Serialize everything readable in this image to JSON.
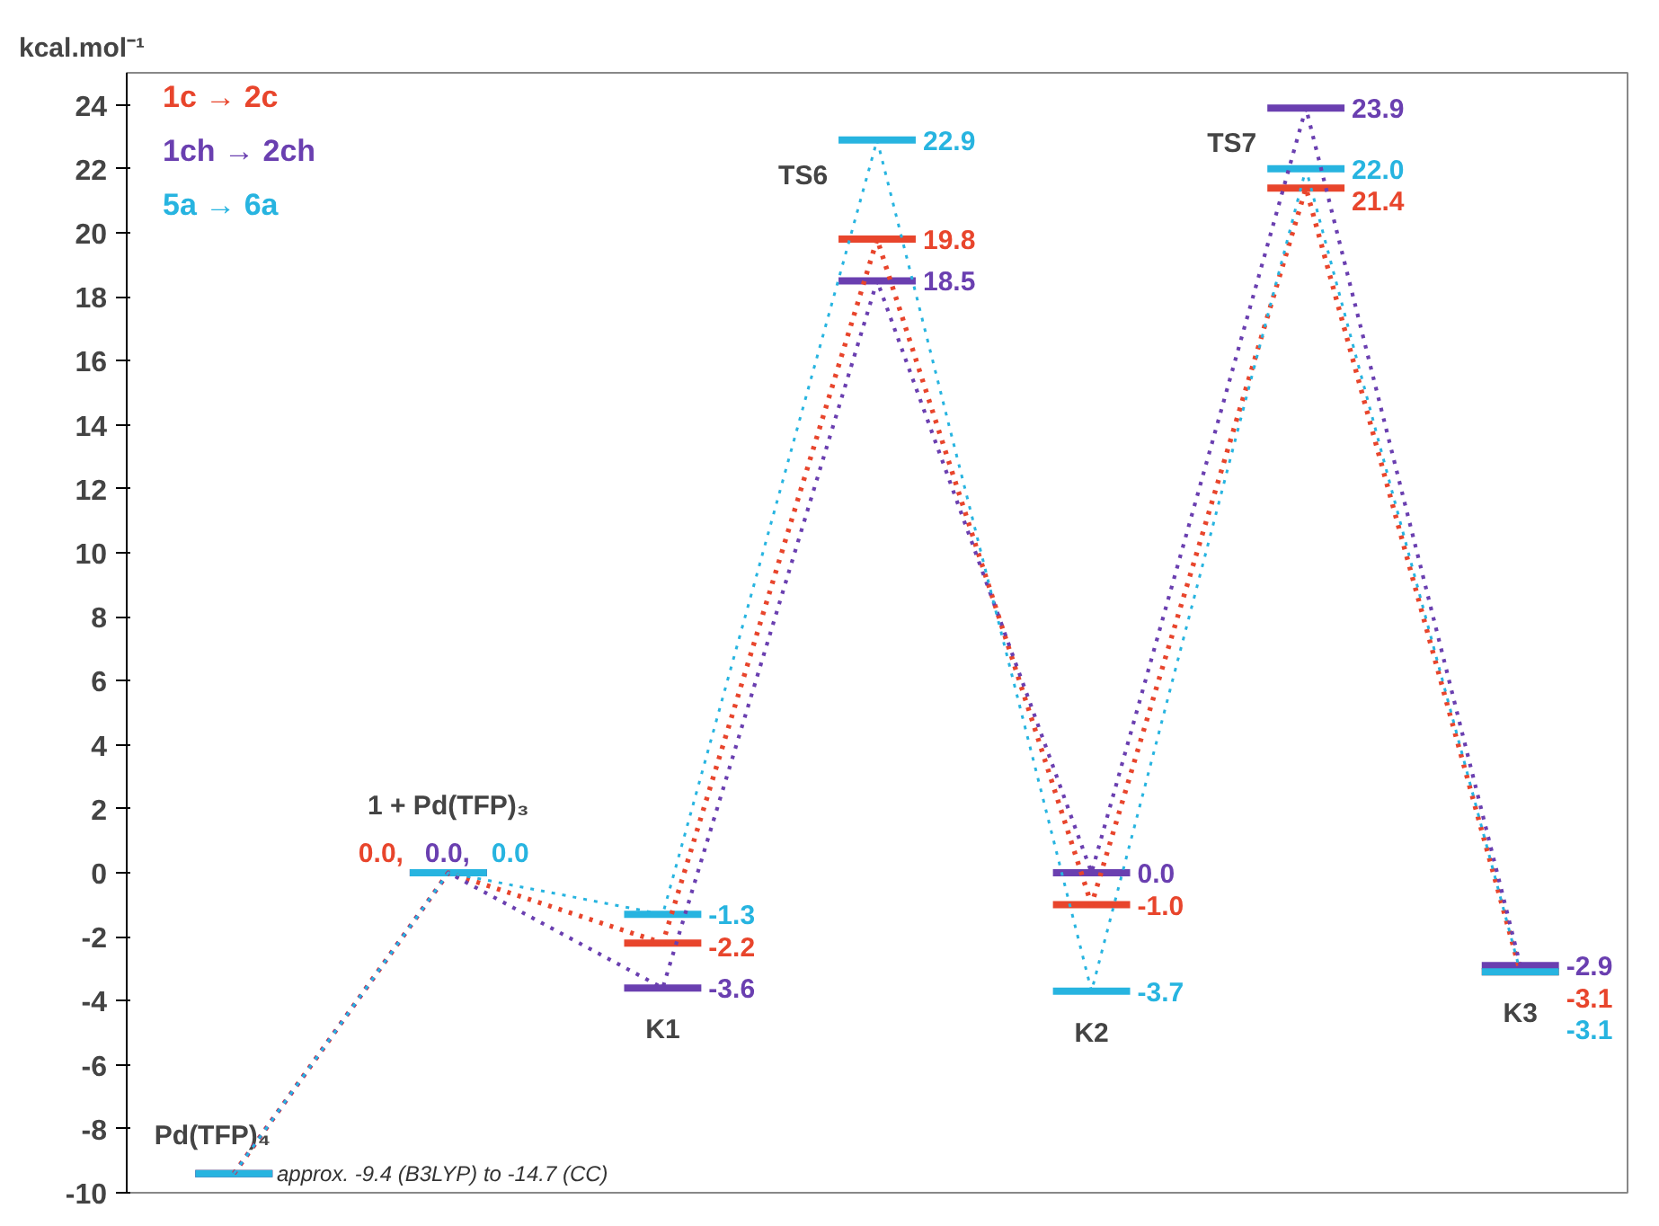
{
  "chart_data": {
    "type": "line",
    "ylabel": "kcal.mol⁻¹",
    "categories": [
      null,
      null,
      null,
      null,
      null,
      null,
      null
    ],
    "ylim": [
      -10,
      25
    ],
    "yticks": [
      -10,
      -8,
      -6,
      -4,
      -2,
      0,
      2,
      4,
      6,
      8,
      10,
      12,
      14,
      16,
      18,
      20,
      22,
      24
    ],
    "grid": false,
    "legend": "top left",
    "line_style": "dotted",
    "series": [
      {
        "name": "1c → 2c",
        "color": "#e8452c",
        "values": [
          -9.4,
          0.0,
          -2.2,
          19.8,
          -1.0,
          21.4,
          -3.1
        ],
        "value_labels": [
          null,
          "0.0,",
          "-2.2",
          "19.8",
          "-1.0",
          "21.4",
          "-3.1"
        ]
      },
      {
        "name": "1ch → 2ch",
        "color": "#6a3fb0",
        "values": [
          -9.4,
          0.0,
          -3.6,
          18.5,
          0.0,
          23.9,
          -2.9
        ],
        "value_labels": [
          null,
          "0.0,",
          "-3.6",
          "18.5",
          "0.0",
          "23.9",
          "-2.9"
        ]
      },
      {
        "name": "5a → 6a",
        "color": "#27b4e0",
        "values": [
          -9.4,
          0.0,
          -1.3,
          22.9,
          -3.7,
          22.0,
          -3.1
        ],
        "value_labels": [
          null,
          "0.0",
          "-1.3",
          "22.9",
          "-3.7",
          "22.0",
          "-3.1"
        ]
      }
    ],
    "annotations": [
      "Pd(TFP)₄",
      "1 + Pd(TFP)₃",
      "K1",
      "TS6",
      "K2",
      "TS7",
      "K3",
      "approx. -9.4 (B3LYP) to -14.7 (CC)"
    ]
  }
}
